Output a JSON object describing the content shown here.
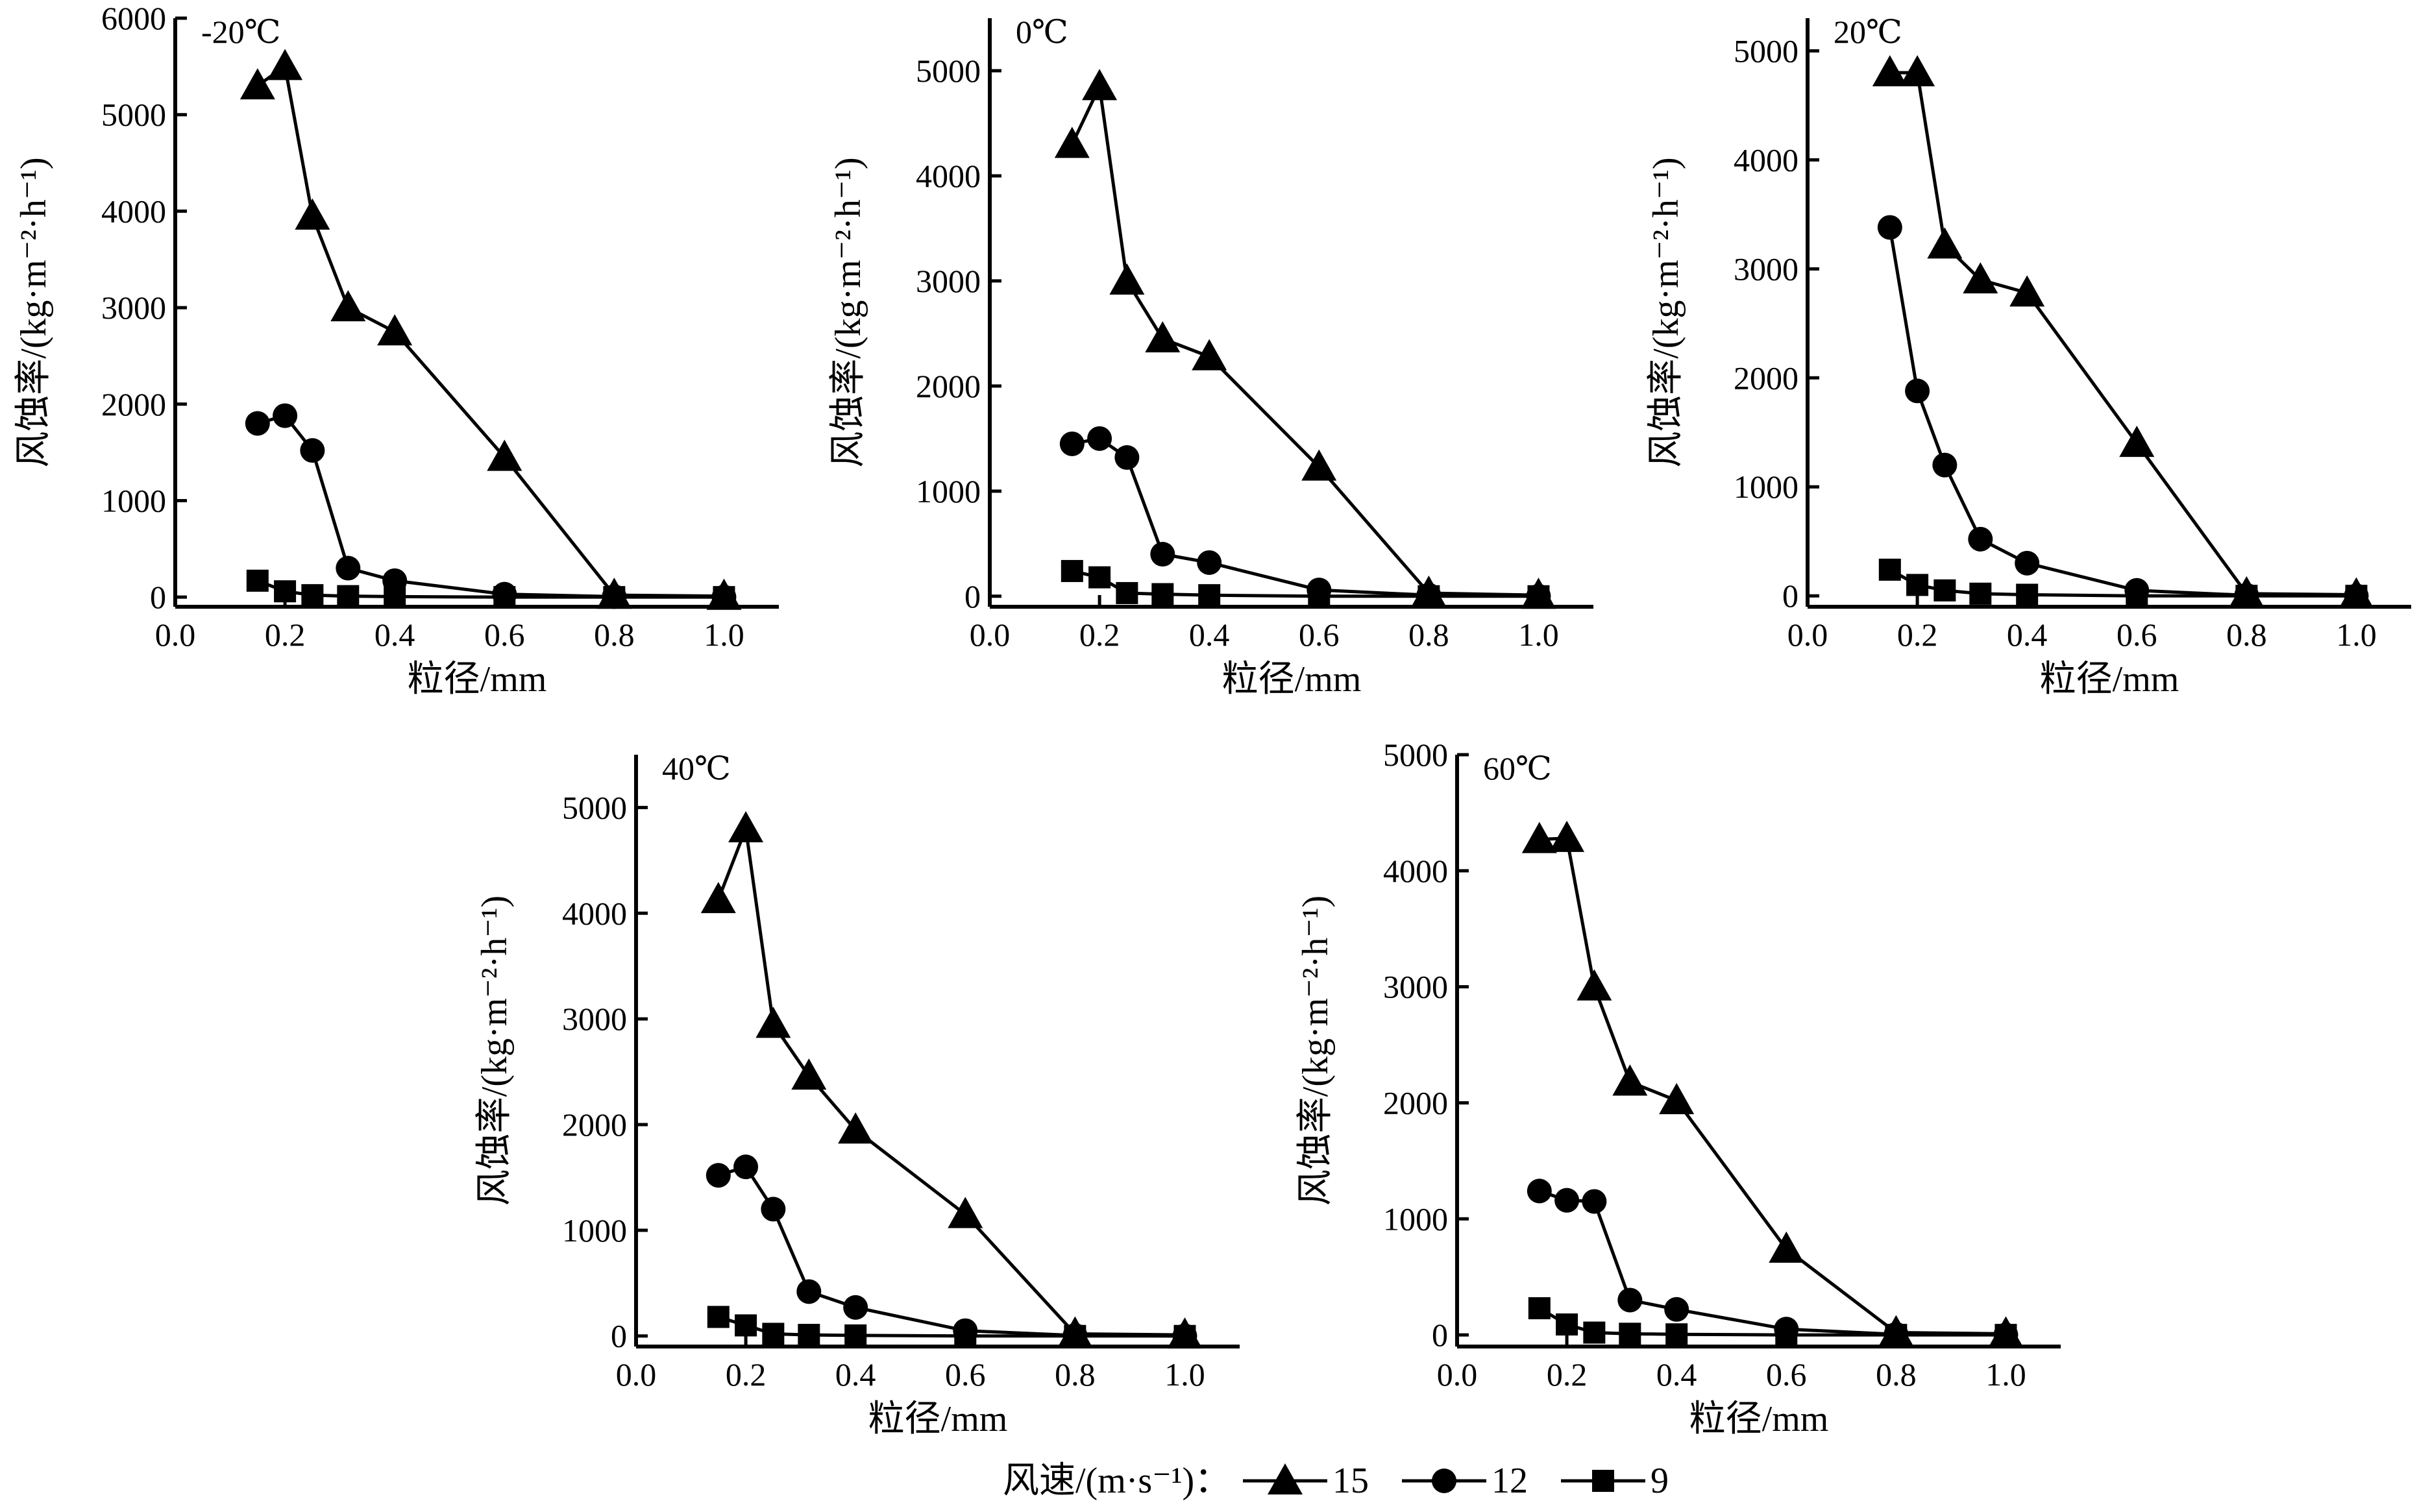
{
  "chart_data": [
    {
      "type": "line",
      "title": "-20℃",
      "xlabel": "粒径/mm",
      "ylabel": "风蚀率/(kg·m⁻²·h⁻¹)",
      "xlim": [
        0.0,
        1.1
      ],
      "ylim": [
        -100,
        6000
      ],
      "xticks": [
        0.0,
        0.2,
        0.4,
        0.6,
        0.8,
        1.0
      ],
      "xtick_labels": [
        "0.0",
        "0.2",
        "0.4",
        "0.6",
        "0.8",
        "1.0"
      ],
      "yticks": [
        0,
        1000,
        2000,
        3000,
        4000,
        5000,
        6000
      ],
      "ytick_labels": [
        "0",
        "1000",
        "2000",
        "3000",
        "4000",
        "5000",
        "6000"
      ],
      "grid": false,
      "series": [
        {
          "name": "15",
          "marker": "triangle",
          "x": [
            0.15,
            0.2,
            0.25,
            0.315,
            0.4,
            0.6,
            0.8,
            1.0
          ],
          "y": [
            5300,
            5500,
            3950,
            3000,
            2750,
            1450,
            20,
            10
          ]
        },
        {
          "name": "12",
          "marker": "circle",
          "x": [
            0.15,
            0.2,
            0.25,
            0.315,
            0.4,
            0.6,
            0.8,
            1.0
          ],
          "y": [
            1800,
            1880,
            1520,
            300,
            170,
            30,
            5,
            0
          ]
        },
        {
          "name": "9",
          "marker": "square",
          "x": [
            0.15,
            0.2,
            0.25,
            0.315,
            0.4,
            0.6,
            0.8,
            1.0
          ],
          "y": [
            170,
            60,
            20,
            10,
            5,
            0,
            0,
            0
          ]
        }
      ]
    },
    {
      "type": "line",
      "title": "0℃",
      "xlabel": "粒径/mm",
      "ylabel": "风蚀率/(kg·m⁻²·h⁻¹)",
      "xlim": [
        0.0,
        1.1
      ],
      "ylim": [
        -100,
        5500
      ],
      "xticks": [
        0.0,
        0.2,
        0.4,
        0.6,
        0.8,
        1.0
      ],
      "xtick_labels": [
        "0.0",
        "0.2",
        "0.4",
        "0.6",
        "0.8",
        "1.0"
      ],
      "yticks": [
        0,
        1000,
        2000,
        3000,
        4000,
        5000
      ],
      "ytick_labels": [
        "0",
        "1000",
        "2000",
        "3000",
        "4000",
        "5000"
      ],
      "grid": false,
      "series": [
        {
          "name": "15",
          "marker": "triangle",
          "x": [
            0.15,
            0.2,
            0.25,
            0.315,
            0.4,
            0.6,
            0.8,
            1.0
          ],
          "y": [
            4300,
            4850,
            3000,
            2450,
            2280,
            1230,
            30,
            10
          ]
        },
        {
          "name": "12",
          "marker": "circle",
          "x": [
            0.15,
            0.2,
            0.25,
            0.315,
            0.4,
            0.6,
            0.8,
            1.0
          ],
          "y": [
            1450,
            1500,
            1320,
            400,
            320,
            60,
            10,
            0
          ]
        },
        {
          "name": "9",
          "marker": "square",
          "x": [
            0.15,
            0.2,
            0.25,
            0.315,
            0.4,
            0.6,
            0.8,
            1.0
          ],
          "y": [
            240,
            180,
            30,
            20,
            10,
            0,
            0,
            0
          ]
        }
      ]
    },
    {
      "type": "line",
      "title": "20℃",
      "xlabel": "粒径/mm",
      "ylabel": "风蚀率/(kg·m⁻²·h⁻¹)",
      "xlim": [
        0.0,
        1.1
      ],
      "ylim": [
        -100,
        5300
      ],
      "xticks": [
        0.0,
        0.2,
        0.4,
        0.6,
        0.8,
        1.0
      ],
      "xtick_labels": [
        "0.0",
        "0.2",
        "0.4",
        "0.6",
        "0.8",
        "1.0"
      ],
      "yticks": [
        0,
        1000,
        2000,
        3000,
        4000,
        5000
      ],
      "ytick_labels": [
        "0",
        "1000",
        "2000",
        "3000",
        "4000",
        "5000"
      ],
      "grid": false,
      "series": [
        {
          "name": "15",
          "marker": "triangle",
          "x": [
            0.15,
            0.2,
            0.25,
            0.315,
            0.4,
            0.6,
            0.8,
            1.0
          ],
          "y": [
            4800,
            4800,
            3220,
            2900,
            2780,
            1400,
            20,
            10
          ]
        },
        {
          "name": "12",
          "marker": "circle",
          "x": [
            0.15,
            0.2,
            0.25,
            0.315,
            0.4,
            0.6,
            0.8,
            1.0
          ],
          "y": [
            3380,
            1880,
            1200,
            520,
            300,
            50,
            5,
            0
          ]
        },
        {
          "name": "9",
          "marker": "square",
          "x": [
            0.15,
            0.2,
            0.25,
            0.315,
            0.4,
            0.6,
            0.8,
            1.0
          ],
          "y": [
            240,
            100,
            50,
            20,
            10,
            0,
            0,
            0
          ]
        }
      ]
    },
    {
      "type": "line",
      "title": "40℃",
      "xlabel": "粒径/mm",
      "ylabel": "风蚀率/(kg·m⁻²·h⁻¹)",
      "xlim": [
        0.0,
        1.1
      ],
      "ylim": [
        -100,
        5500
      ],
      "xticks": [
        0.0,
        0.2,
        0.4,
        0.6,
        0.8,
        1.0
      ],
      "xtick_labels": [
        "0.0",
        "0.2",
        "0.4",
        "0.6",
        "0.8",
        "1.0"
      ],
      "yticks": [
        0,
        1000,
        2000,
        3000,
        4000,
        5000
      ],
      "ytick_labels": [
        "0",
        "1000",
        "2000",
        "3000",
        "4000",
        "5000"
      ],
      "grid": false,
      "series": [
        {
          "name": "15",
          "marker": "triangle",
          "x": [
            0.15,
            0.2,
            0.25,
            0.315,
            0.4,
            0.6,
            0.8,
            1.0
          ],
          "y": [
            4130,
            4800,
            2950,
            2460,
            1950,
            1150,
            20,
            10
          ]
        },
        {
          "name": "12",
          "marker": "circle",
          "x": [
            0.15,
            0.2,
            0.25,
            0.315,
            0.4,
            0.6,
            0.8,
            1.0
          ],
          "y": [
            1520,
            1600,
            1200,
            420,
            270,
            50,
            5,
            0
          ]
        },
        {
          "name": "9",
          "marker": "square",
          "x": [
            0.15,
            0.2,
            0.25,
            0.315,
            0.4,
            0.6,
            0.8,
            1.0
          ],
          "y": [
            180,
            100,
            20,
            10,
            5,
            0,
            0,
            0
          ]
        }
      ]
    },
    {
      "type": "line",
      "title": "60℃",
      "xlabel": "粒径/mm",
      "ylabel": "风蚀率/(kg·m⁻²·h⁻¹)",
      "xlim": [
        0.0,
        1.1
      ],
      "ylim": [
        -100,
        5000
      ],
      "xticks": [
        0.0,
        0.2,
        0.4,
        0.6,
        0.8,
        1.0
      ],
      "xtick_labels": [
        "0.0",
        "0.2",
        "0.4",
        "0.6",
        "0.8",
        "1.0"
      ],
      "yticks": [
        0,
        1000,
        2000,
        3000,
        4000,
        5000
      ],
      "ytick_labels": [
        "0",
        "1000",
        "2000",
        "3000",
        "4000",
        "5000"
      ],
      "grid": false,
      "series": [
        {
          "name": "15",
          "marker": "triangle",
          "x": [
            0.15,
            0.2,
            0.25,
            0.315,
            0.4,
            0.6,
            0.8,
            1.0
          ],
          "y": [
            4270,
            4280,
            3000,
            2180,
            2020,
            740,
            20,
            10
          ]
        },
        {
          "name": "12",
          "marker": "circle",
          "x": [
            0.15,
            0.2,
            0.25,
            0.315,
            0.4,
            0.6,
            0.8,
            1.0
          ],
          "y": [
            1240,
            1160,
            1150,
            300,
            220,
            50,
            5,
            0
          ]
        },
        {
          "name": "9",
          "marker": "square",
          "x": [
            0.15,
            0.2,
            0.25,
            0.315,
            0.4,
            0.6,
            0.8,
            1.0
          ],
          "y": [
            230,
            90,
            20,
            10,
            5,
            0,
            0,
            0
          ]
        }
      ]
    }
  ],
  "legend": {
    "title": "风速/(m·s⁻¹)：",
    "placement": "bottom-center",
    "items": [
      {
        "label": "15",
        "marker": "triangle"
      },
      {
        "label": "12",
        "marker": "circle"
      },
      {
        "label": "9",
        "marker": "square"
      }
    ]
  }
}
